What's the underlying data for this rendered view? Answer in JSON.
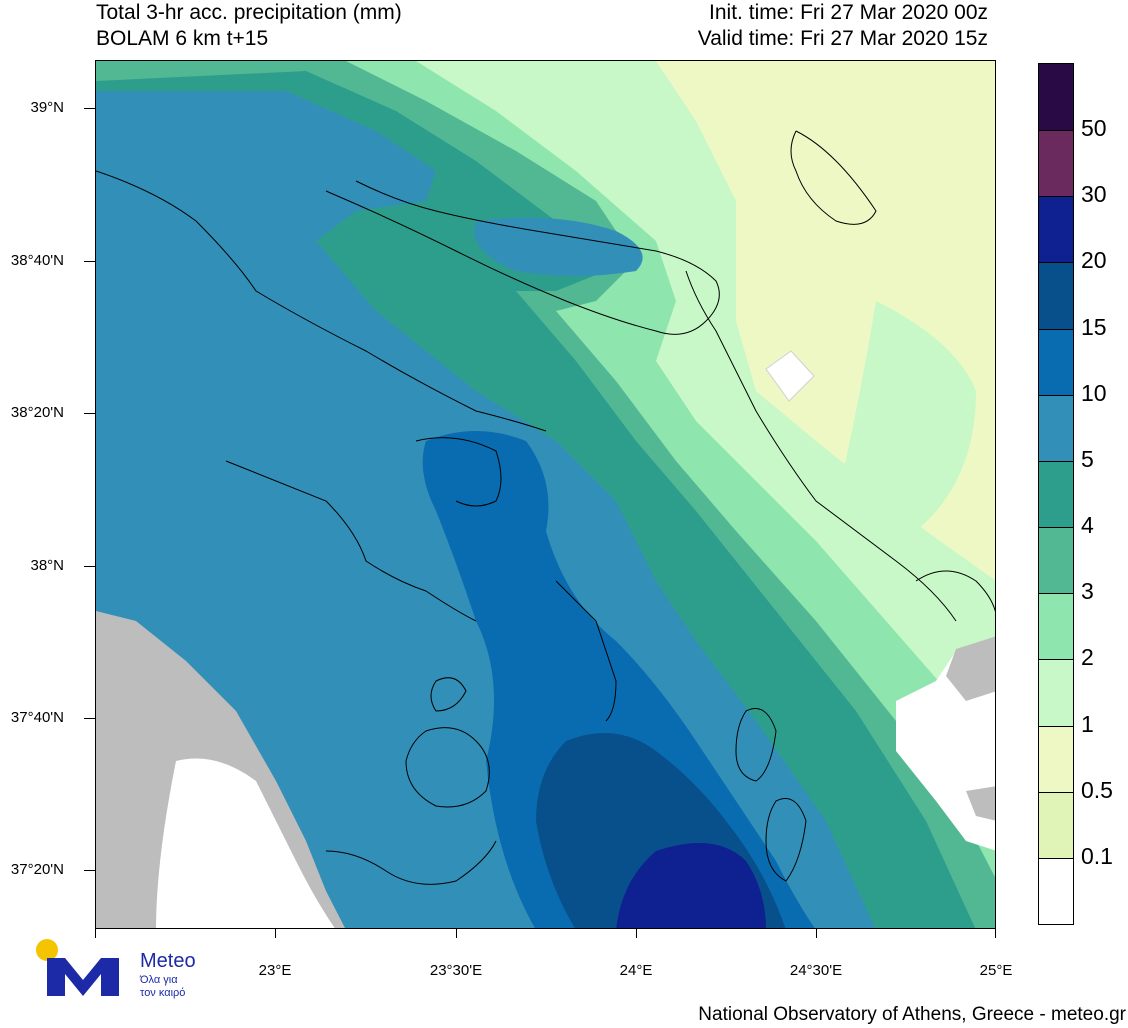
{
  "header": {
    "title": "Total 3-hr acc. precipitation (mm)",
    "subtitle": "BOLAM 6 km t+15",
    "init_time": "Init. time: Fri 27 Mar 2020 00z",
    "valid_time": "Valid time: Fri 27 Mar 2020 15z"
  },
  "axes": {
    "y_labels": [
      "39°N",
      "38°40'N",
      "38°20'N",
      "38°N",
      "37°40'N",
      "37°20'N"
    ],
    "x_labels": [
      "23°E",
      "23°30'E",
      "24°E",
      "24°30'E",
      "25°E"
    ]
  },
  "colorbar": {
    "labels": [
      "50",
      "30",
      "20",
      "15",
      "10",
      "5",
      "4",
      "3",
      "2",
      "1",
      "0.5",
      "0.1"
    ],
    "colors": [
      "#2a0a45",
      "#6a2a5e",
      "#0f2090",
      "#08508c",
      "#0a6cb0",
      "#3290b8",
      "#2e9e8c",
      "#52b894",
      "#8ee6ae",
      "#c8f8c8",
      "#eef8c4",
      "#e0f4b8",
      "#ffffff"
    ]
  },
  "map": {
    "land_color": "#bdbdbd",
    "coast_color": "#000000"
  },
  "logo": {
    "brand": "Meteo",
    "tagline_1": "Όλα για",
    "tagline_2": "τον καιρό"
  },
  "footer": {
    "credit": "National Observatory of Athens, Greece - meteo.gr"
  }
}
